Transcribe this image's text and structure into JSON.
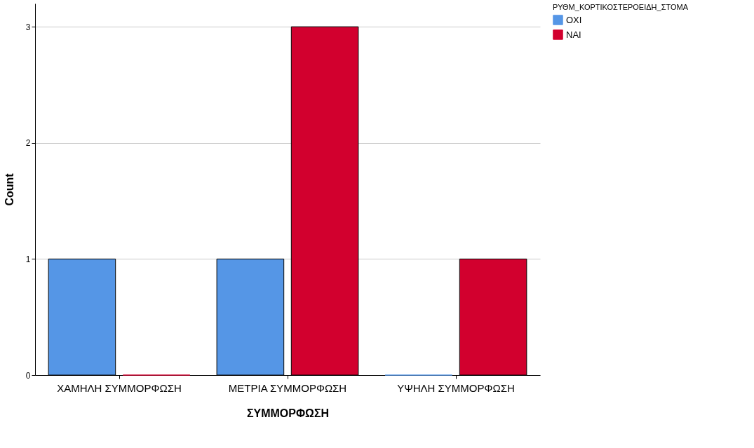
{
  "chart_data": {
    "type": "bar",
    "xlabel": "ΣΥΜΜΟΡΦΩΣΗ",
    "ylabel": "Count",
    "legend_title": "ΡΥΘΜ_ΚΟΡΤΙΚΟΣΤΕΡΟΕΙΔΗ_ΣΤΟΜΑ",
    "categories": [
      "ΧΑΜΗΛΗ ΣΥΜΜΟΡΦΩΣΗ",
      "ΜΕΤΡΙΑ ΣΥΜΜΟΡΦΩΣΗ",
      "ΥΨΗΛΗ ΣΥΜΜΟΡΦΩΣΗ"
    ],
    "series": [
      {
        "name": "ΟΧΙ",
        "color": "#5596e6",
        "values": [
          1,
          1,
          0
        ]
      },
      {
        "name": "ΝΑΙ",
        "color": "#d2002e",
        "values": [
          0,
          3,
          1
        ]
      }
    ],
    "ylim": [
      0,
      3.2
    ],
    "yticks": [
      0,
      1,
      2,
      3
    ],
    "grid": "y",
    "legend": "top right"
  }
}
